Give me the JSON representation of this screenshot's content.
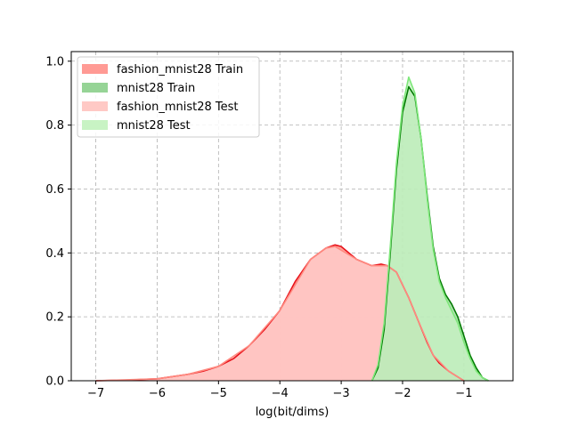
{
  "chart_data": {
    "type": "area",
    "title": "",
    "xlabel": "log(bit/dims)",
    "ylabel": "",
    "xlim": [
      -7.4,
      -0.2
    ],
    "ylim": [
      0,
      1.03
    ],
    "xticks": [
      -7,
      -6,
      -5,
      -4,
      -3,
      -2,
      -1
    ],
    "xtick_labels": [
      "−7",
      "−6",
      "−5",
      "−4",
      "−3",
      "−2",
      "−1"
    ],
    "yticks": [
      0.0,
      0.2,
      0.4,
      0.6,
      0.8,
      1.0
    ],
    "ytick_labels": [
      "0.0",
      "0.2",
      "0.4",
      "0.6",
      "0.8",
      "1.0"
    ],
    "grid": true,
    "grid_style": "dashed",
    "legend_position": "top-left",
    "series": [
      {
        "name": "fashion_mnist28 Train",
        "kind": "hist-kde",
        "fill_color": "#ff9a94",
        "line_color": "#e8121a",
        "x": [
          -7.0,
          -6.5,
          -6.0,
          -5.5,
          -5.25,
          -5.0,
          -4.75,
          -4.5,
          -4.25,
          -4.0,
          -3.75,
          -3.5,
          -3.25,
          -3.1,
          -3.0,
          -2.75,
          -2.5,
          -2.35,
          -2.25,
          -2.1,
          -1.9,
          -1.75,
          -1.6,
          -1.5,
          -1.4,
          -1.25,
          -1.0
        ],
        "y": [
          0.0,
          0.002,
          0.006,
          0.02,
          0.03,
          0.045,
          0.07,
          0.11,
          0.16,
          0.22,
          0.31,
          0.38,
          0.415,
          0.425,
          0.42,
          0.38,
          0.36,
          0.365,
          0.36,
          0.34,
          0.26,
          0.19,
          0.12,
          0.08,
          0.055,
          0.03,
          0.0
        ]
      },
      {
        "name": "mnist28 Train",
        "kind": "hist-kde",
        "fill_color": "#96d496",
        "line_color": "#007a00",
        "x": [
          -2.5,
          -2.4,
          -2.3,
          -2.2,
          -2.1,
          -2.0,
          -1.9,
          -1.8,
          -1.7,
          -1.6,
          -1.5,
          -1.4,
          -1.3,
          -1.2,
          -1.1,
          -1.0,
          -0.9,
          -0.8,
          -0.7,
          -0.6
        ],
        "y": [
          0.0,
          0.04,
          0.16,
          0.4,
          0.66,
          0.84,
          0.92,
          0.89,
          0.76,
          0.58,
          0.42,
          0.32,
          0.27,
          0.24,
          0.2,
          0.14,
          0.08,
          0.04,
          0.01,
          0.0
        ]
      },
      {
        "name": "fashion_mnist28 Test",
        "kind": "hist-kde",
        "fill_color": "#ffc9c5",
        "line_color": "#ff8a80",
        "x": [
          -7.0,
          -6.0,
          -5.5,
          -5.0,
          -4.5,
          -4.0,
          -3.5,
          -3.25,
          -3.1,
          -2.75,
          -2.5,
          -2.25,
          -2.1,
          -1.9,
          -1.75,
          -1.5,
          -1.25,
          -1.0
        ],
        "y": [
          0.0,
          0.006,
          0.02,
          0.045,
          0.11,
          0.22,
          0.38,
          0.415,
          0.42,
          0.38,
          0.36,
          0.36,
          0.34,
          0.26,
          0.19,
          0.08,
          0.03,
          0.0
        ]
      },
      {
        "name": "mnist28 Test",
        "kind": "hist-kde",
        "fill_color": "#c8f3c4",
        "line_color": "#7ee87a",
        "x": [
          -2.5,
          -2.4,
          -2.3,
          -2.2,
          -2.1,
          -2.0,
          -1.9,
          -1.8,
          -1.7,
          -1.6,
          -1.5,
          -1.4,
          -1.3,
          -1.2,
          -1.1,
          -1.0,
          -0.9,
          -0.8,
          -0.7,
          -0.6
        ],
        "y": [
          0.0,
          0.05,
          0.18,
          0.42,
          0.68,
          0.86,
          0.95,
          0.9,
          0.76,
          0.57,
          0.41,
          0.31,
          0.26,
          0.22,
          0.18,
          0.12,
          0.07,
          0.03,
          0.01,
          0.0
        ]
      }
    ]
  }
}
